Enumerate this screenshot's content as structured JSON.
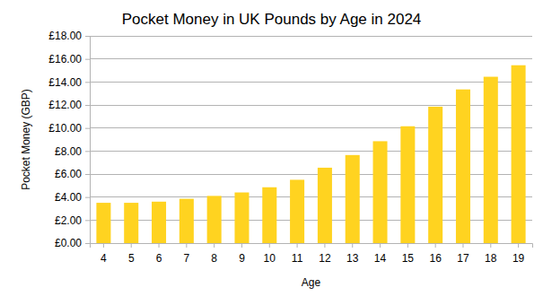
{
  "chart_data": {
    "type": "bar",
    "title": "Pocket Money in UK Pounds by Age in 2024",
    "x_label": "Age",
    "y_label": "Pocket Money (GBP)",
    "categories": [
      "4",
      "5",
      "6",
      "7",
      "8",
      "9",
      "10",
      "11",
      "12",
      "13",
      "14",
      "15",
      "16",
      "17",
      "18",
      "19"
    ],
    "values": [
      3.5,
      3.5,
      3.6,
      3.85,
      4.1,
      4.4,
      4.85,
      5.5,
      6.55,
      7.65,
      8.85,
      10.15,
      11.85,
      13.35,
      14.45,
      15.45
    ],
    "color": "#ffd320",
    "ylim": [
      0,
      18
    ],
    "yticks": [
      {
        "value": 0,
        "label": "£0.00"
      },
      {
        "value": 2,
        "label": "£2.00"
      },
      {
        "value": 4,
        "label": "£4.00"
      },
      {
        "value": 6,
        "label": "£6.00"
      },
      {
        "value": 8,
        "label": "£8.00"
      },
      {
        "value": 10,
        "label": "£10.00"
      },
      {
        "value": 12,
        "label": "£12.00"
      },
      {
        "value": 14,
        "label": "£14.00"
      },
      {
        "value": 16,
        "label": "£16.00"
      },
      {
        "value": 18,
        "label": "£18.00"
      }
    ],
    "grid": true
  }
}
